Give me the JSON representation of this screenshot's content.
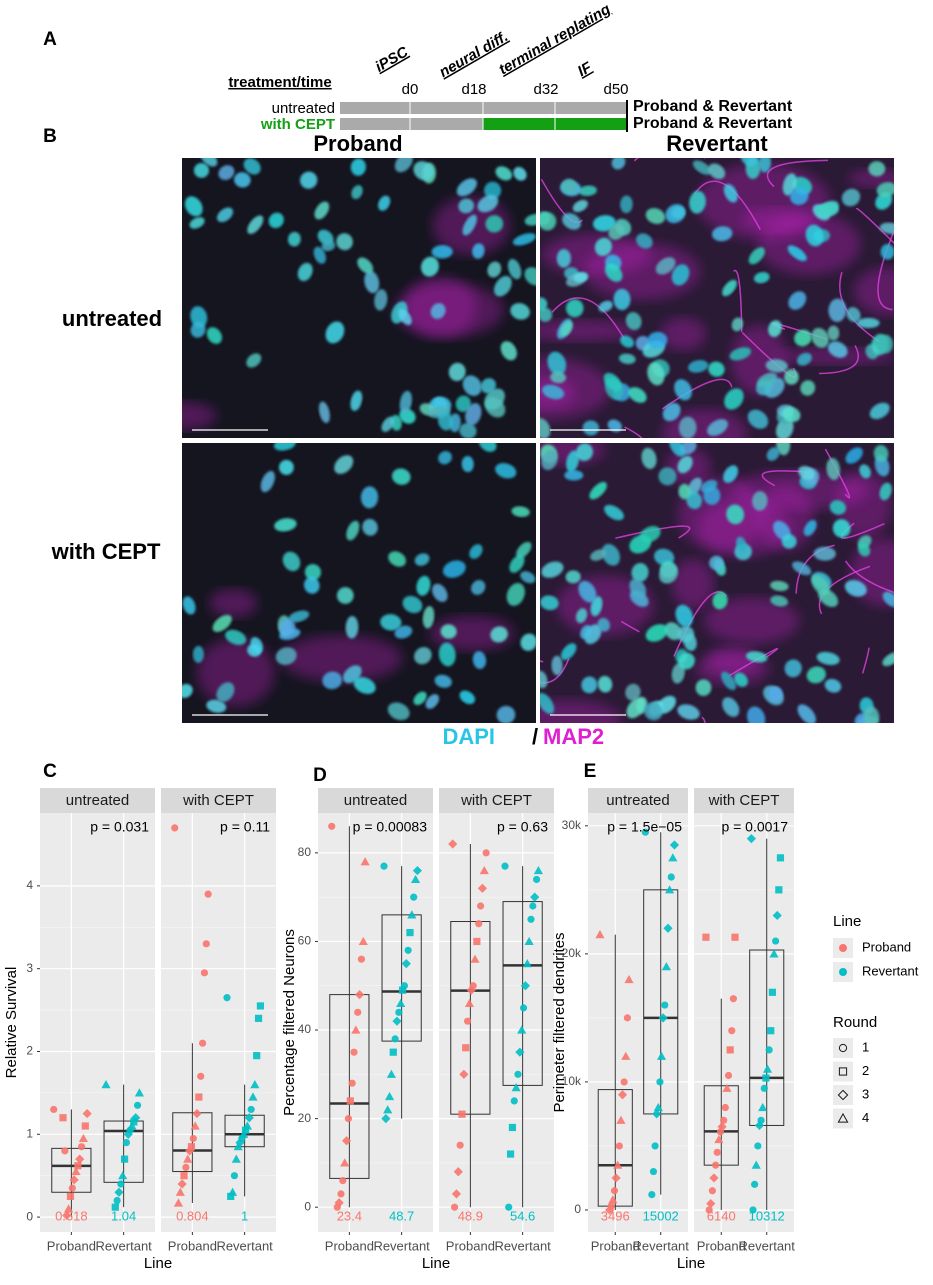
{
  "panel_labels": [
    "A",
    "B",
    "C",
    "D",
    "E"
  ],
  "timeline": {
    "header": "treatment/time",
    "stages": [
      "iPSC",
      "neural diff.",
      "terminal replating",
      "IF"
    ],
    "days": [
      "d0",
      "d18",
      "d32",
      "d50"
    ],
    "rows": [
      {
        "label": "untreated",
        "note": "Proband & Revertant"
      },
      {
        "label": "with CEPT",
        "note": "Proband & Revertant"
      }
    ]
  },
  "images": {
    "columns": [
      "Proband",
      "Revertant"
    ],
    "rows": [
      "untreated",
      "with CEPT"
    ],
    "stain": [
      "DAPI",
      "/",
      "MAP2"
    ]
  },
  "legend": {
    "line_title": "Line",
    "round_title": "Round",
    "lines": [
      {
        "name": "Proband",
        "color": "#f8766d"
      },
      {
        "name": "Revertant",
        "color": "#00bfc4"
      }
    ],
    "rounds": [
      1,
      2,
      3,
      4
    ]
  },
  "chart_data": [
    {
      "type": "box",
      "ylabel": "Relative Survival",
      "xlabel": "Line",
      "ylim": [
        -0.18,
        4.88
      ],
      "yticks": [
        0,
        1,
        2,
        3,
        4
      ],
      "facets": [
        {
          "name": "untreated",
          "p_label": "p = 0.031",
          "groups": [
            {
              "name": "Proband",
              "box": {
                "whisker_low": 0,
                "q1": 0.3,
                "median": 0.618,
                "q3": 0.83,
                "whisker_high": 1.3
              },
              "values": [
                1.3,
                1.25,
                1.1,
                0.95,
                0.85,
                0.7,
                0.62,
                0.55,
                0.45,
                0.35,
                0.25,
                0.1,
                0.02,
                0.8,
                1.2
              ],
              "rounds": [
                1,
                3,
                2,
                4,
                1,
                3,
                2,
                4,
                3,
                1,
                2,
                4,
                3,
                1,
                2
              ]
            },
            {
              "name": "Revertant",
              "box": {
                "whisker_low": 0.12,
                "q1": 0.42,
                "median": 1.04,
                "q3": 1.16,
                "whisker_high": 1.6
              },
              "values": [
                1.6,
                1.5,
                1.35,
                1.2,
                1.15,
                1.1,
                1.05,
                1.0,
                0.9,
                0.7,
                0.5,
                0.4,
                0.3,
                0.2,
                0.12
              ],
              "rounds": [
                4,
                4,
                1,
                3,
                2,
                4,
                1,
                3,
                1,
                2,
                4,
                1,
                3,
                1,
                2
              ]
            }
          ]
        },
        {
          "name": "with CEPT",
          "p_label": "p = 0.11",
          "groups": [
            {
              "name": "Proband",
              "box": {
                "whisker_low": 0.17,
                "q1": 0.55,
                "median": 0.804,
                "q3": 1.26,
                "whisker_high": 2.1
              },
              "values": [
                4.7,
                3.9,
                3.3,
                2.95,
                2.1,
                1.7,
                1.45,
                1.25,
                1.1,
                0.95,
                0.85,
                0.8,
                0.7,
                0.6,
                0.5,
                0.4,
                0.3,
                0.17
              ],
              "rounds": [
                1,
                1,
                1,
                1,
                1,
                1,
                2,
                3,
                4,
                1,
                2,
                3,
                4,
                1,
                2,
                3,
                4,
                4
              ]
            },
            {
              "name": "Revertant",
              "box": {
                "whisker_low": 0.25,
                "q1": 0.85,
                "median": 1,
                "q3": 1.23,
                "whisker_high": 1.6
              },
              "values": [
                2.65,
                2.55,
                2.4,
                1.95,
                1.6,
                1.45,
                1.3,
                1.2,
                1.1,
                1.05,
                1.0,
                0.95,
                0.9,
                0.85,
                0.7,
                0.5,
                0.3,
                0.25
              ],
              "rounds": [
                1,
                2,
                2,
                2,
                4,
                4,
                1,
                3,
                4,
                2,
                4,
                1,
                3,
                4,
                4,
                1,
                4,
                2
              ]
            }
          ]
        }
      ]
    },
    {
      "type": "box",
      "ylabel": "Percentage filtered Neurons",
      "xlabel": "Line",
      "ylim": [
        -5.6,
        89
      ],
      "yticks": [
        0,
        20,
        40,
        60,
        80
      ],
      "facets": [
        {
          "name": "untreated",
          "p_label": "p = 0.00083",
          "groups": [
            {
              "name": "Proband",
              "box": {
                "whisker_low": 0,
                "q1": 6.5,
                "median": 23.4,
                "q3": 48,
                "whisker_high": 86
              },
              "values": [
                86,
                78,
                60,
                56,
                48,
                44,
                40,
                35,
                28,
                24,
                20,
                15,
                10,
                6,
                3,
                1,
                0
              ],
              "rounds": [
                1,
                4,
                4,
                1,
                3,
                1,
                4,
                1,
                1,
                2,
                1,
                3,
                4,
                1,
                1,
                3,
                1
              ]
            },
            {
              "name": "Revertant",
              "box": {
                "whisker_low": 20,
                "q1": 37.5,
                "median": 48.7,
                "q3": 66,
                "whisker_high": 77
              },
              "values": [
                77,
                76,
                74,
                70,
                66,
                62,
                58,
                55,
                50,
                49,
                46,
                44,
                42,
                38,
                35,
                30,
                25,
                22,
                20
              ],
              "rounds": [
                1,
                3,
                4,
                1,
                4,
                2,
                1,
                3,
                1,
                2,
                4,
                1,
                3,
                1,
                2,
                4,
                4,
                4,
                3
              ]
            }
          ]
        },
        {
          "name": "with CEPT",
          "p_label": "p = 0.63",
          "groups": [
            {
              "name": "Proband",
              "box": {
                "whisker_low": 0,
                "q1": 21,
                "median": 48.9,
                "q3": 64.5,
                "whisker_high": 82
              },
              "values": [
                82,
                80,
                76,
                72,
                68,
                64,
                60,
                56,
                50,
                49,
                46,
                42,
                36,
                30,
                21,
                14,
                8,
                3,
                0
              ],
              "rounds": [
                3,
                1,
                4,
                3,
                1,
                1,
                2,
                4,
                1,
                3,
                4,
                1,
                2,
                3,
                2,
                1,
                3,
                3,
                1
              ]
            },
            {
              "name": "Revertant",
              "box": {
                "whisker_low": 0,
                "q1": 27.5,
                "median": 54.6,
                "q3": 69,
                "whisker_high": 77
              },
              "values": [
                77,
                76,
                74,
                70,
                68,
                65,
                60,
                55,
                50,
                45,
                40,
                35,
                30,
                27,
                24,
                18,
                12,
                0
              ],
              "rounds": [
                1,
                4,
                1,
                3,
                1,
                1,
                4,
                4,
                3,
                1,
                4,
                3,
                1,
                4,
                1,
                2,
                2,
                1
              ]
            }
          ]
        }
      ]
    },
    {
      "type": "box",
      "ylabel": "Perimeter filtered dendrites",
      "xlabel": "Line",
      "ylim": [
        -1720,
        31000
      ],
      "yticks": [
        0,
        {
          "value": 10000,
          "label": "10k"
        },
        {
          "value": 20000,
          "label": "20k"
        },
        {
          "value": 30000,
          "label": "30k"
        }
      ],
      "facets": [
        {
          "name": "untreated",
          "p_label": "p = 1.5e−05",
          "groups": [
            {
              "name": "Proband",
              "box": {
                "whisker_low": 0,
                "q1": 300,
                "median": 3496,
                "q3": 9400,
                "whisker_high": 21500
              },
              "values": [
                21500,
                18000,
                15000,
                12000,
                10000,
                9000,
                7000,
                5000,
                3500,
                2500,
                1500,
                800,
                300,
                0
              ],
              "rounds": [
                4,
                4,
                1,
                4,
                1,
                3,
                4,
                1,
                4,
                3,
                1,
                4,
                1,
                3
              ]
            },
            {
              "name": "Revertant",
              "box": {
                "whisker_low": 1200,
                "q1": 7500,
                "median": 15002,
                "q3": 25000,
                "whisker_high": 29500
              },
              "values": [
                29500,
                28500,
                27500,
                26000,
                25000,
                22000,
                19000,
                16000,
                15000,
                12000,
                10000,
                8000,
                7500,
                5000,
                3000,
                1200
              ],
              "rounds": [
                1,
                3,
                4,
                1,
                4,
                3,
                4,
                1,
                3,
                4,
                1,
                4,
                3,
                1,
                1,
                1
              ]
            }
          ]
        },
        {
          "name": "with CEPT",
          "p_label": "p = 0.0017",
          "groups": [
            {
              "name": "Proband",
              "box": {
                "whisker_low": 0,
                "q1": 3500,
                "median": 6140,
                "q3": 9700,
                "whisker_high": 16500
              },
              "values": [
                21300,
                21300,
                16500,
                14000,
                12500,
                10500,
                9500,
                8000,
                7000,
                6500,
                6100,
                5500,
                4500,
                3500,
                2500,
                1500,
                500,
                0
              ],
              "rounds": [
                2,
                2,
                1,
                1,
                2,
                1,
                4,
                1,
                1,
                3,
                1,
                4,
                1,
                1,
                3,
                1,
                3,
                1
              ]
            },
            {
              "name": "Revertant",
              "box": {
                "whisker_low": 0,
                "q1": 6600,
                "median": 10312,
                "q3": 20300,
                "whisker_high": 29000
              },
              "values": [
                29000,
                27500,
                25000,
                23000,
                21000,
                20000,
                17000,
                14000,
                12500,
                11000,
                10300,
                9500,
                8000,
                7000,
                6600,
                5000,
                3500,
                2000,
                0
              ],
              "rounds": [
                3,
                2,
                2,
                3,
                1,
                4,
                2,
                2,
                1,
                4,
                2,
                1,
                4,
                1,
                3,
                1,
                4,
                1,
                1
              ]
            }
          ]
        }
      ]
    }
  ]
}
